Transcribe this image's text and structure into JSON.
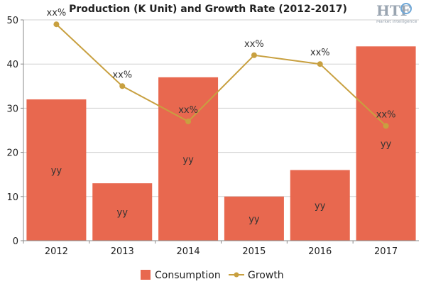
{
  "chart_data": {
    "type": "bar",
    "title": "Production (K Unit) and Growth Rate (2012-2017)",
    "categories": [
      "2012",
      "2013",
      "2014",
      "2015",
      "2016",
      "2017"
    ],
    "ylim": [
      0,
      50
    ],
    "yticks": [
      "0",
      "10",
      "20",
      "30",
      "40",
      "50"
    ],
    "grid": true,
    "legend_position": "bottom",
    "series": [
      {
        "name": "Consumption",
        "type": "bar",
        "color": "#e8684f",
        "values": [
          32,
          13,
          37,
          10,
          16,
          44
        ],
        "labels": [
          "yy",
          "yy",
          "yy",
          "yy",
          "yy",
          "yy"
        ]
      },
      {
        "name": "Growth",
        "type": "line",
        "color": "#c8a040",
        "values": [
          49,
          35,
          27,
          42,
          40,
          26
        ],
        "labels": [
          "xx%",
          "xx%",
          "xx%",
          "xx%",
          "xx%",
          "xx%"
        ]
      }
    ]
  },
  "logo": {
    "text": "HTF",
    "subtext": "Market Intelligence"
  }
}
